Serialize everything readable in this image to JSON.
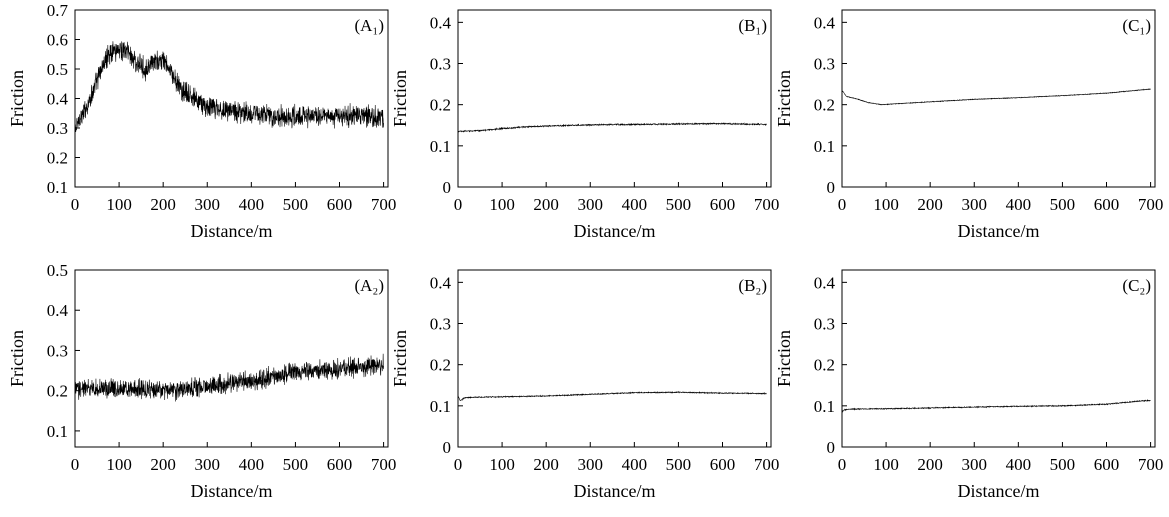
{
  "figure": {
    "description_free": true
  },
  "chart_data": [
    {
      "id": "A1",
      "type": "line",
      "panel_label": "(A₁)",
      "xlabel": "Distance/m",
      "ylabel": "Friction",
      "xlim": [
        0,
        710
      ],
      "ylim": [
        0.1,
        0.7
      ],
      "xticks": [
        0,
        100,
        200,
        300,
        400,
        500,
        600,
        700
      ],
      "yticks": [
        0.1,
        0.2,
        0.3,
        0.4,
        0.5,
        0.6,
        0.7
      ],
      "ytick_labels": [
        "0.1",
        "0.2",
        "0.3",
        "0.4",
        "0.5",
        "0.6",
        "0.7"
      ],
      "noise": 0.045,
      "series": [
        {
          "name": "friction",
          "x": [
            0,
            10,
            20,
            40,
            60,
            80,
            100,
            120,
            140,
            160,
            180,
            200,
            220,
            240,
            260,
            280,
            300,
            350,
            400,
            450,
            500,
            600,
            700
          ],
          "y": [
            0.29,
            0.33,
            0.35,
            0.42,
            0.5,
            0.56,
            0.57,
            0.56,
            0.52,
            0.5,
            0.52,
            0.53,
            0.48,
            0.43,
            0.41,
            0.39,
            0.37,
            0.36,
            0.35,
            0.34,
            0.34,
            0.34,
            0.34
          ]
        }
      ]
    },
    {
      "id": "B1",
      "type": "line",
      "panel_label": "(B₁)",
      "xlabel": "Distance/m",
      "ylabel": "Friction",
      "xlim": [
        0,
        710
      ],
      "ylim": [
        0,
        0.43
      ],
      "xticks": [
        0,
        100,
        200,
        300,
        400,
        500,
        600,
        700
      ],
      "yticks": [
        0,
        0.1,
        0.2,
        0.3,
        0.4
      ],
      "ytick_labels": [
        "0",
        "0.1",
        "0.2",
        "0.3",
        "0.4"
      ],
      "noise": 0.002,
      "series": [
        {
          "name": "friction",
          "x": [
            0,
            50,
            100,
            150,
            200,
            300,
            400,
            500,
            600,
            700
          ],
          "y": [
            0.135,
            0.137,
            0.142,
            0.146,
            0.148,
            0.151,
            0.152,
            0.153,
            0.154,
            0.152
          ]
        }
      ]
    },
    {
      "id": "C1",
      "type": "line",
      "panel_label": "(C₁)",
      "xlabel": "Distance/m",
      "ylabel": "Friction",
      "xlim": [
        0,
        710
      ],
      "ylim": [
        0,
        0.43
      ],
      "xticks": [
        0,
        100,
        200,
        300,
        400,
        500,
        600,
        700
      ],
      "yticks": [
        0,
        0.1,
        0.2,
        0.3,
        0.4
      ],
      "ytick_labels": [
        "0",
        "0.1",
        "0.2",
        "0.3",
        "0.4"
      ],
      "noise": 0.001,
      "series": [
        {
          "name": "friction",
          "x": [
            0,
            10,
            30,
            60,
            90,
            120,
            200,
            300,
            400,
            500,
            600,
            700
          ],
          "y": [
            0.235,
            0.22,
            0.215,
            0.205,
            0.2,
            0.202,
            0.207,
            0.213,
            0.217,
            0.222,
            0.228,
            0.238
          ]
        }
      ]
    },
    {
      "id": "A2",
      "type": "line",
      "panel_label": "(A₂)",
      "xlabel": "Distance/m",
      "ylabel": "Friction",
      "xlim": [
        0,
        710
      ],
      "ylim": [
        0.06,
        0.5
      ],
      "xticks": [
        0,
        100,
        200,
        300,
        400,
        500,
        600,
        700
      ],
      "yticks": [
        0.1,
        0.2,
        0.3,
        0.4,
        0.5
      ],
      "ytick_labels": [
        "0.1",
        "0.2",
        "0.3",
        "0.4",
        "0.5"
      ],
      "noise": 0.03,
      "series": [
        {
          "name": "friction",
          "x": [
            0,
            100,
            200,
            250,
            300,
            400,
            500,
            600,
            700
          ],
          "y": [
            0.205,
            0.205,
            0.2,
            0.205,
            0.21,
            0.225,
            0.245,
            0.255,
            0.265
          ]
        }
      ]
    },
    {
      "id": "B2",
      "type": "line",
      "panel_label": "(B₂)",
      "xlabel": "Distance/m",
      "ylabel": "Friction",
      "xlim": [
        0,
        710
      ],
      "ylim": [
        0,
        0.43
      ],
      "xticks": [
        0,
        100,
        200,
        300,
        400,
        500,
        600,
        700
      ],
      "yticks": [
        0,
        0.1,
        0.2,
        0.3,
        0.4
      ],
      "ytick_labels": [
        "0",
        "0.1",
        "0.2",
        "0.3",
        "0.4"
      ],
      "noise": 0.0015,
      "series": [
        {
          "name": "friction",
          "x": [
            0,
            5,
            15,
            50,
            100,
            200,
            300,
            400,
            500,
            600,
            700
          ],
          "y": [
            0.125,
            0.112,
            0.12,
            0.121,
            0.122,
            0.124,
            0.128,
            0.132,
            0.133,
            0.131,
            0.13
          ]
        }
      ]
    },
    {
      "id": "C2",
      "type": "line",
      "panel_label": "(C₂)",
      "xlabel": "Distance/m",
      "ylabel": "Friction",
      "xlim": [
        0,
        710
      ],
      "ylim": [
        0,
        0.43
      ],
      "xticks": [
        0,
        100,
        200,
        300,
        400,
        500,
        600,
        700
      ],
      "yticks": [
        0,
        0.1,
        0.2,
        0.3,
        0.4
      ],
      "ytick_labels": [
        "0",
        "0.1",
        "0.2",
        "0.3",
        "0.4"
      ],
      "noise": 0.0015,
      "series": [
        {
          "name": "friction",
          "x": [
            0,
            5,
            20,
            100,
            200,
            300,
            400,
            500,
            600,
            680,
            700
          ],
          "y": [
            0.085,
            0.09,
            0.092,
            0.093,
            0.095,
            0.097,
            0.099,
            0.1,
            0.104,
            0.112,
            0.113
          ]
        }
      ]
    }
  ]
}
